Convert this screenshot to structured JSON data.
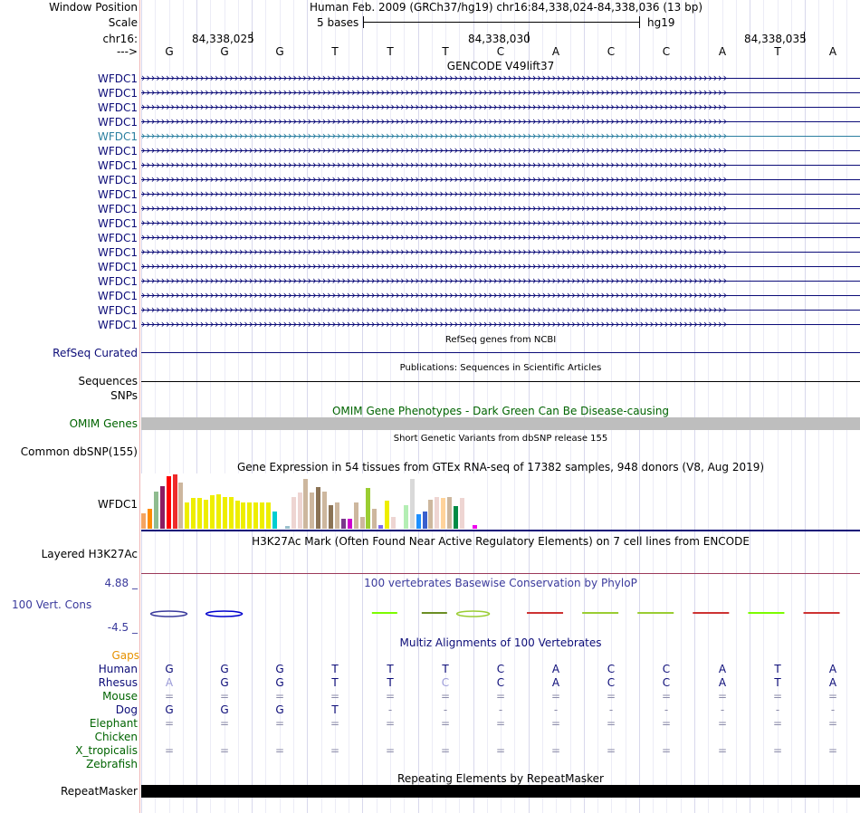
{
  "header": {
    "window_position_label": "Window Position",
    "window_position_value": "Human Feb. 2009 (GRCh37/hg19)   chr16:84,338,024-84,338,036 (13 bp)",
    "scale_label": "Scale",
    "scale_text": "5 bases",
    "scale_assembly": "hg19",
    "chrom_label": "chr16:",
    "positions": [
      "84,338,025",
      "84,338,030",
      "84,338,035"
    ],
    "strand_label": "--->",
    "bases": [
      "G",
      "G",
      "G",
      "T",
      "T",
      "T",
      "C",
      "A",
      "C",
      "C",
      "A",
      "T",
      "A"
    ]
  },
  "gencode": {
    "title": "GENCODE V49lift37",
    "transcripts": [
      "WFDC1",
      "WFDC1",
      "WFDC1",
      "WFDC1",
      "WFDC1",
      "WFDC1",
      "WFDC1",
      "WFDC1",
      "WFDC1",
      "WFDC1",
      "WFDC1",
      "WFDC1",
      "WFDC1",
      "WFDC1",
      "WFDC1",
      "WFDC1",
      "WFDC1",
      "WFDC1"
    ],
    "highlighted_index": 4,
    "color": "#0c0c78",
    "highlight_color": "#2b7fa0"
  },
  "refseq": {
    "title": "RefSeq genes from NCBI",
    "label": "RefSeq Curated",
    "color": "#0c0c78"
  },
  "publications": {
    "title": "Publications: Sequences in Scientific Articles",
    "label1": "Sequences",
    "label2": "SNPs"
  },
  "omim": {
    "title": "OMIM Gene Phenotypes - Dark Green Can Be Disease-causing",
    "label": "OMIM Genes",
    "color": "#006400",
    "bar_color": "#bebebe"
  },
  "dbsnp": {
    "title": "Short Genetic Variants from dbSNP release 155",
    "label": "Common dbSNP(155)"
  },
  "gtex": {
    "title": "Gene Expression in 54 tissues from GTEx RNA-seq of 17382 samples, 948 donors (V8, Aug 2019)",
    "label": "WFDC1",
    "bars": [
      {
        "v": 0.28,
        "c": "#f4a460"
      },
      {
        "v": 0.36,
        "c": "#ff8c00"
      },
      {
        "v": 0.68,
        "c": "#8fbc8f"
      },
      {
        "v": 0.78,
        "c": "#8b1c62"
      },
      {
        "v": 0.97,
        "c": "#ff0000"
      },
      {
        "v": 1.0,
        "c": "#ee2c2c"
      },
      {
        "v": 0.85,
        "c": "#cdb79e"
      },
      {
        "v": 0.49,
        "c": "#eeee00"
      },
      {
        "v": 0.56,
        "c": "#eeee00"
      },
      {
        "v": 0.56,
        "c": "#eeee00"
      },
      {
        "v": 0.53,
        "c": "#eeee00"
      },
      {
        "v": 0.61,
        "c": "#eeee00"
      },
      {
        "v": 0.63,
        "c": "#eeee00"
      },
      {
        "v": 0.58,
        "c": "#eeee00"
      },
      {
        "v": 0.58,
        "c": "#eeee00"
      },
      {
        "v": 0.51,
        "c": "#eeee00"
      },
      {
        "v": 0.49,
        "c": "#eeee00"
      },
      {
        "v": 0.49,
        "c": "#eeee00"
      },
      {
        "v": 0.49,
        "c": "#eeee00"
      },
      {
        "v": 0.49,
        "c": "#eeee00"
      },
      {
        "v": 0.49,
        "c": "#eeee00"
      },
      {
        "v": 0.31,
        "c": "#00ced1"
      },
      {
        "v": 0.0,
        "c": "#ffffff"
      },
      {
        "v": 0.05,
        "c": "#9ac0cd"
      },
      {
        "v": 0.58,
        "c": "#eed5d2"
      },
      {
        "v": 0.66,
        "c": "#eed5d2"
      },
      {
        "v": 0.92,
        "c": "#cdb79e"
      },
      {
        "v": 0.66,
        "c": "#cdb79e"
      },
      {
        "v": 0.76,
        "c": "#8b7355"
      },
      {
        "v": 0.68,
        "c": "#cdb79e"
      },
      {
        "v": 0.44,
        "c": "#8b7355"
      },
      {
        "v": 0.49,
        "c": "#cdb79e"
      },
      {
        "v": 0.19,
        "c": "#7a378b"
      },
      {
        "v": 0.19,
        "c": "#cd00cd"
      },
      {
        "v": 0.49,
        "c": "#cdb79e"
      },
      {
        "v": 0.22,
        "c": "#cdb79e"
      },
      {
        "v": 0.75,
        "c": "#9acd32"
      },
      {
        "v": 0.36,
        "c": "#cdb79e"
      },
      {
        "v": 0.07,
        "c": "#7a67ee"
      },
      {
        "v": 0.51,
        "c": "#eeee00"
      },
      {
        "v": 0.22,
        "c": "#eed5d2"
      },
      {
        "v": 0.0,
        "c": "#ffffff"
      },
      {
        "v": 0.44,
        "c": "#b4eeb4"
      },
      {
        "v": 0.92,
        "c": "#d9d9d9"
      },
      {
        "v": 0.27,
        "c": "#1e90ff"
      },
      {
        "v": 0.31,
        "c": "#3a5fcd"
      },
      {
        "v": 0.53,
        "c": "#cdb79e"
      },
      {
        "v": 0.58,
        "c": "#eed5d2"
      },
      {
        "v": 0.56,
        "c": "#ffd39b"
      },
      {
        "v": 0.58,
        "c": "#cdb79e"
      },
      {
        "v": 0.42,
        "c": "#008b45"
      },
      {
        "v": 0.56,
        "c": "#eed5d2"
      },
      {
        "v": 0.0,
        "c": "#ffffff"
      },
      {
        "v": 0.07,
        "c": "#ee00ee"
      }
    ]
  },
  "h3k27ac": {
    "title": "H3K27Ac Mark (Often Found Near Active Regulatory Elements) on 7 cell lines from ENCODE",
    "label": "Layered H3K27Ac"
  },
  "conservation": {
    "title": "100 vertebrates Basewise Conservation by PhyloP",
    "label": "100 Vert. Cons",
    "max": "4.88 _",
    "min": "-4.5 _",
    "color": "#3a3a9c"
  },
  "multiz": {
    "title": "Multiz Alignments of 100 Vertebrates",
    "gaps_label": "Gaps",
    "species": [
      {
        "name": "Human",
        "color": "#0c0c78",
        "seq": [
          "G",
          "G",
          "G",
          "T",
          "T",
          "T",
          "C",
          "A",
          "C",
          "C",
          "A",
          "T",
          "A"
        ]
      },
      {
        "name": "Rhesus",
        "color": "#0c0c78",
        "seq": [
          "A",
          "G",
          "G",
          "T",
          "T",
          "C",
          "C",
          "A",
          "C",
          "C",
          "A",
          "T",
          "A"
        ]
      },
      {
        "name": "Mouse",
        "color": "#006400",
        "seq": [
          "=",
          "=",
          "=",
          "=",
          "=",
          "=",
          "=",
          "=",
          "=",
          "=",
          "=",
          "=",
          "="
        ]
      },
      {
        "name": "Dog",
        "color": "#0c0c78",
        "seq": [
          "G",
          "G",
          "G",
          "T",
          "-",
          "-",
          "-",
          "-",
          "-",
          "-",
          "-",
          "-",
          "-"
        ]
      },
      {
        "name": "Elephant",
        "color": "#006400",
        "seq": [
          "=",
          "=",
          "=",
          "=",
          "=",
          "=",
          "=",
          "=",
          "=",
          "=",
          "=",
          "=",
          "="
        ]
      },
      {
        "name": "Chicken",
        "color": "#006400",
        "seq": [
          "",
          "",
          "",
          "",
          "",
          "",
          "",
          "",
          "",
          "",
          "",
          "",
          ""
        ]
      },
      {
        "name": "X_tropicalis",
        "color": "#006400",
        "seq": [
          "=",
          "=",
          "=",
          "=",
          "=",
          "=",
          "=",
          "=",
          "=",
          "=",
          "=",
          "=",
          "="
        ]
      },
      {
        "name": "Zebrafish",
        "color": "#006400",
        "seq": [
          "",
          "",
          "",
          "",
          "",
          "",
          "",
          "",
          "",
          "",
          "",
          "",
          ""
        ]
      }
    ]
  },
  "repeatmasker": {
    "title": "Repeating Elements by RepeatMasker",
    "label": "RepeatMasker"
  }
}
